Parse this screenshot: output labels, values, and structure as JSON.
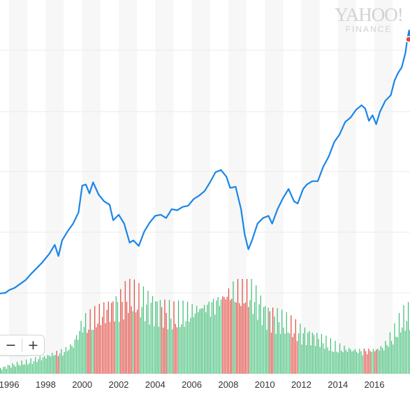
{
  "watermark": {
    "brand": "YAHOO!",
    "sub": "FINANCE"
  },
  "zoom_controls": {
    "minus_label": "−",
    "plus_label": "+"
  },
  "chart_data": {
    "type": "line",
    "title": "",
    "xlabel": "",
    "ylabel": "",
    "x_tick_labels": [
      "1996",
      "1998",
      "2000",
      "2002",
      "2004",
      "2006",
      "2008",
      "2010",
      "2012",
      "2014",
      "2016"
    ],
    "xlim": [
      1995.5,
      2017.95
    ],
    "grid": true,
    "price_series": {
      "color": "#1a86e8",
      "x": [
        1995.5,
        1995.8,
        1996.0,
        1996.3,
        1996.6,
        1996.9,
        1997.2,
        1997.5,
        1997.8,
        1998.0,
        1998.2,
        1998.5,
        1998.7,
        1998.9,
        1999.2,
        1999.5,
        1999.8,
        2000.0,
        2000.2,
        2000.4,
        2000.6,
        2000.9,
        2001.2,
        2001.5,
        2001.7,
        2002.0,
        2002.3,
        2002.6,
        2002.8,
        2003.1,
        2003.4,
        2003.7,
        2004.0,
        2004.3,
        2004.6,
        2004.9,
        2005.2,
        2005.5,
        2005.8,
        2006.1,
        2006.4,
        2006.7,
        2007.0,
        2007.3,
        2007.6,
        2007.9,
        2008.1,
        2008.4,
        2008.7,
        2008.9,
        2009.1,
        2009.3,
        2009.6,
        2009.9,
        2010.2,
        2010.4,
        2010.7,
        2011.0,
        2011.3,
        2011.6,
        2011.8,
        2012.1,
        2012.3,
        2012.6,
        2012.9,
        2013.2,
        2013.5,
        2013.8,
        2014.1,
        2014.4,
        2014.7,
        2015.0,
        2015.3,
        2015.5,
        2015.7,
        2015.9,
        2016.1,
        2016.3,
        2016.6,
        2016.9,
        2017.1,
        2017.3,
        2017.5,
        2017.7,
        2017.8,
        2017.9,
        2017.95
      ],
      "y": [
        425,
        430,
        455,
        475,
        510,
        545,
        600,
        650,
        700,
        740,
        780,
        860,
        760,
        900,
        980,
        1050,
        1150,
        1390,
        1400,
        1320,
        1420,
        1310,
        1250,
        1220,
        1080,
        1130,
        1050,
        880,
        900,
        850,
        980,
        1060,
        1120,
        1130,
        1100,
        1180,
        1170,
        1200,
        1210,
        1270,
        1300,
        1340,
        1420,
        1510,
        1530,
        1470,
        1370,
        1380,
        1180,
        950,
        820,
        900,
        1050,
        1100,
        1120,
        1050,
        1180,
        1280,
        1360,
        1250,
        1230,
        1360,
        1400,
        1430,
        1430,
        1560,
        1650,
        1780,
        1850,
        1960,
        2000,
        2070,
        2110,
        2080,
        1970,
        2020,
        1940,
        2050,
        2150,
        2200,
        2330,
        2400,
        2450,
        2580,
        2700,
        2780,
        2700
      ]
    },
    "current_marker": {
      "x": 2017.95,
      "y": 2700,
      "color": "#e0463c"
    },
    "volume_series": {
      "up_color": "#3dbd74",
      "down_color": "#e0463c",
      "x": [
        1995.5,
        1996.0,
        1997.0,
        1998.0,
        1999.0,
        1999.5,
        2000.0,
        2001.0,
        2002.0,
        2002.5,
        2003.0,
        2004.0,
        2005.0,
        2006.0,
        2007.0,
        2008.0,
        2008.5,
        2009.0,
        2009.5,
        2010.0,
        2011.0,
        2012.0,
        2013.0,
        2014.0,
        2015.0,
        2016.0,
        2016.5,
        2017.0,
        2017.5,
        2017.95
      ],
      "y": [
        0.5,
        0.8,
        1.2,
        1.8,
        2.5,
        3.2,
        5.5,
        6.2,
        7.0,
        7.8,
        7.2,
        6.5,
        6.0,
        6.5,
        7.5,
        8.5,
        8.8,
        9.5,
        7.5,
        6.0,
        5.0,
        4.0,
        3.5,
        2.8,
        2.5,
        2.5,
        2.8,
        4.0,
        5.5,
        6.0
      ]
    }
  }
}
